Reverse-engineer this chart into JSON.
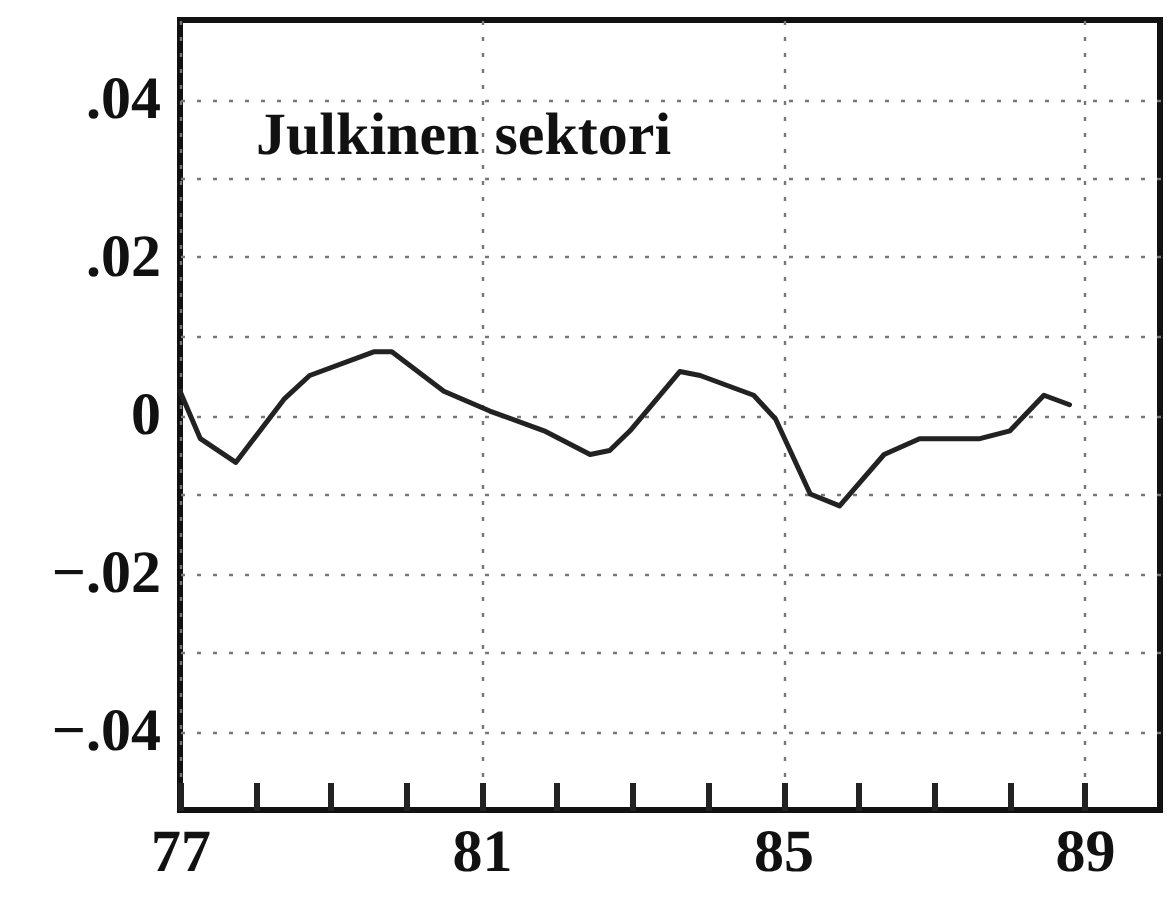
{
  "chart_data": {
    "type": "line",
    "title": "Julkinen sektori",
    "x": [
      77.0,
      77.27,
      77.74,
      78.38,
      78.72,
      79.57,
      79.81,
      80.5,
      81.11,
      81.83,
      82.44,
      82.7,
      82.97,
      83.63,
      83.9,
      84.61,
      84.9,
      85.36,
      85.75,
      86.34,
      86.81,
      87.61,
      88.01,
      88.46,
      88.8
    ],
    "series": [
      {
        "color": "#222222",
        "values": [
          0.003,
          -0.003,
          -0.006,
          0.002,
          0.005,
          0.008,
          0.008,
          0.003,
          0.0005,
          -0.002,
          -0.005,
          -0.0045,
          -0.002,
          0.0055,
          0.005,
          0.0025,
          -0.0005,
          -0.01,
          -0.0115,
          -0.005,
          -0.003,
          -0.003,
          -0.002,
          0.0025,
          0.0013
        ]
      }
    ],
    "xlim": [
      77,
      90
    ],
    "xticks": [
      77,
      {
        "value": 78,
        "label": null
      },
      {
        "value": 79,
        "label": null
      },
      {
        "value": 80,
        "label": null
      },
      81,
      {
        "value": 82,
        "label": null
      },
      {
        "value": 83,
        "label": null
      },
      {
        "value": 84,
        "label": null
      },
      85,
      {
        "value": 86,
        "label": null
      },
      {
        "value": 87,
        "label": null
      },
      {
        "value": 88,
        "label": null
      },
      89
    ],
    "ylim": [
      -0.05,
      0.05
    ],
    "yticks": [
      {
        "value": -0.04,
        "label": "−.04"
      },
      {
        "value": -0.03,
        "label": null
      },
      {
        "value": -0.02,
        "label": "−.02"
      },
      {
        "value": -0.01,
        "label": null
      },
      0,
      {
        "value": 0.01,
        "label": null
      },
      {
        "value": 0.02,
        "label": ".02"
      },
      {
        "value": 0.03,
        "label": null
      },
      {
        "value": 0.04,
        "label": ".04"
      }
    ],
    "grid": true,
    "line_style": "solid",
    "marker": "none"
  }
}
